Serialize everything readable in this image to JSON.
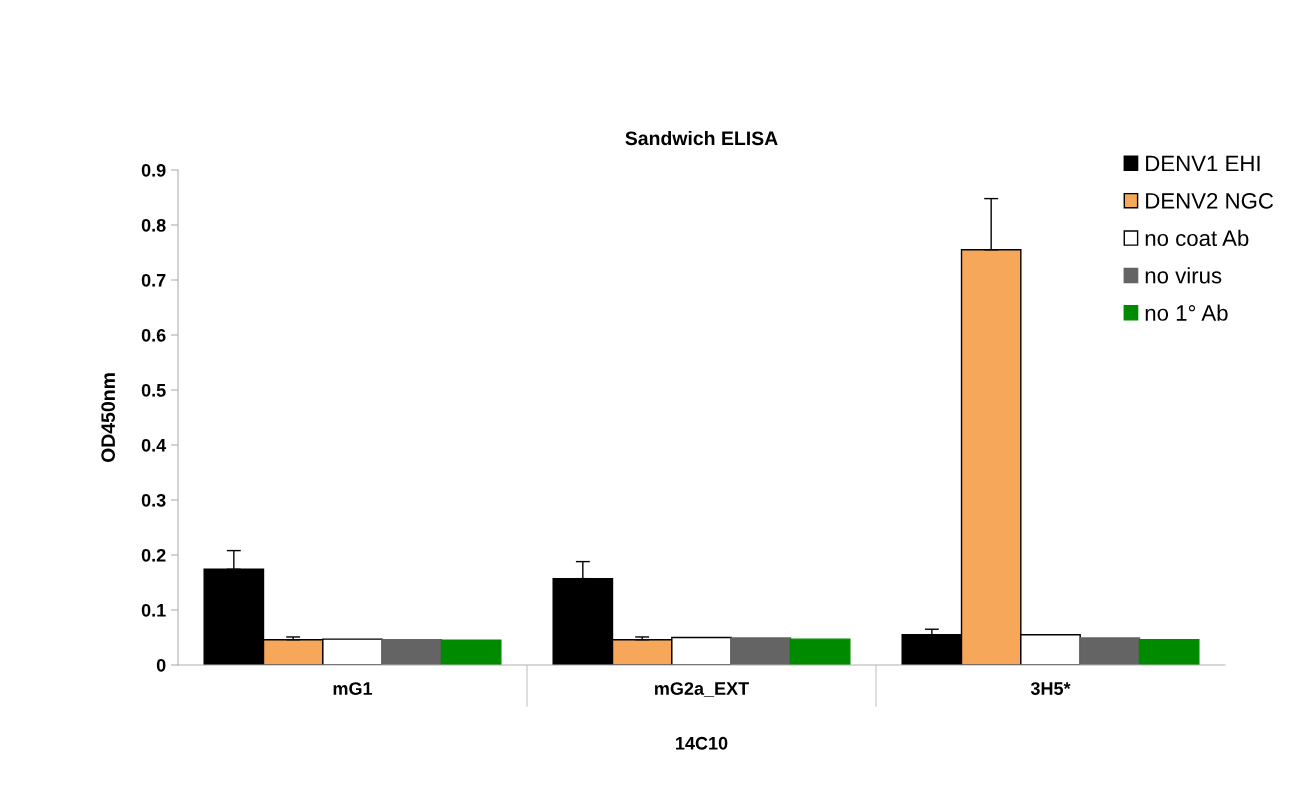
{
  "chart_data": {
    "type": "bar",
    "title": "Sandwich ELISA",
    "xlabel": "14C10",
    "ylabel": "OD450nm",
    "categories": [
      "mG1",
      "mG2a_EXT",
      "3H5*"
    ],
    "series": [
      {
        "name": "DENV1 EHI",
        "color": "#000000",
        "values": [
          0.174,
          0.157,
          0.055
        ],
        "errors": [
          0.034,
          0.031,
          0.01
        ]
      },
      {
        "name": "DENV2 NGC",
        "color": "#f7a75a",
        "values": [
          0.046,
          0.046,
          0.755
        ],
        "errors": [
          0.005,
          0.005,
          0.093
        ]
      },
      {
        "name": "no coat Ab",
        "color": "#ffffff",
        "values": [
          0.047,
          0.05,
          0.055
        ]
      },
      {
        "name": "no virus",
        "color": "#646464",
        "values": [
          0.046,
          0.049,
          0.049
        ]
      },
      {
        "name": "no 1° Ab",
        "color": "#008a00",
        "values": [
          0.045,
          0.047,
          0.046
        ]
      }
    ],
    "ylim": [
      0,
      0.9
    ],
    "yticks": [
      0,
      0.1,
      0.2,
      0.3,
      0.4,
      0.5,
      0.6,
      0.7,
      0.8,
      0.9
    ],
    "grid": false,
    "legend": "top right"
  }
}
